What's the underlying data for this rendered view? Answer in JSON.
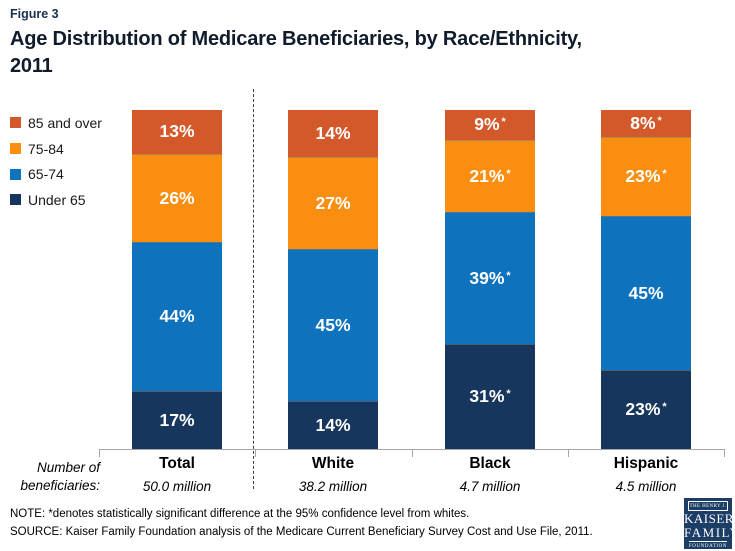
{
  "figure_label": "Figure 3",
  "title_lines": [
    "Age Distribution of Medicare Beneficiaries, by Race/Ethnicity,",
    "2011"
  ],
  "axis_caption_lines": [
    "Number of",
    "beneficiaries:"
  ],
  "note": "NOTE: *denotes statistically significant difference at the 95% confidence level from whites.",
  "source": "SOURCE: Kaiser Family Foundation analysis of the Medicare Current Beneficiary Survey Cost and Use File, 2011.",
  "logo": {
    "line1": "THE HENRY J.",
    "line2": "KAISER",
    "line3": "FAMILY",
    "line4": "FOUNDATION"
  },
  "colors": {
    "orange_dark": "#d4592a",
    "orange": "#fa8e10",
    "blue": "#0f72bd",
    "navy": "#17365d",
    "axis": "#a6a6a6",
    "separator": "#3f3f3f",
    "figure_label": "#1a3050",
    "title": "#101c2b",
    "logo_bg": "#1c3d66"
  },
  "chart_data": {
    "type": "bar",
    "stacked": true,
    "title": "Age Distribution of Medicare Beneficiaries, by Race/Ethnicity, 2011",
    "unit": "percent",
    "ylim": [
      0,
      100
    ],
    "grid": false,
    "legend_position": "left",
    "categories": [
      "Total",
      "White",
      "Black",
      "Hispanic"
    ],
    "category_sublabels": [
      "50.0 million",
      "38.2 million",
      "4.7 million",
      "4.5 million"
    ],
    "series": [
      {
        "name": "85 and over",
        "color_key": "orange_dark",
        "values": [
          13,
          14,
          9,
          8
        ],
        "significant": [
          false,
          false,
          true,
          true
        ]
      },
      {
        "name": "75-84",
        "color_key": "orange",
        "values": [
          26,
          27,
          21,
          23
        ],
        "significant": [
          false,
          false,
          true,
          true
        ]
      },
      {
        "name": "65-74",
        "color_key": "blue",
        "values": [
          44,
          45,
          39,
          45
        ],
        "significant": [
          false,
          false,
          true,
          false
        ]
      },
      {
        "name": "Under 65",
        "color_key": "navy",
        "values": [
          17,
          14,
          31,
          23
        ],
        "significant": [
          false,
          false,
          true,
          true
        ]
      }
    ],
    "significance_marker": "*",
    "separator_after_category": "Total"
  }
}
